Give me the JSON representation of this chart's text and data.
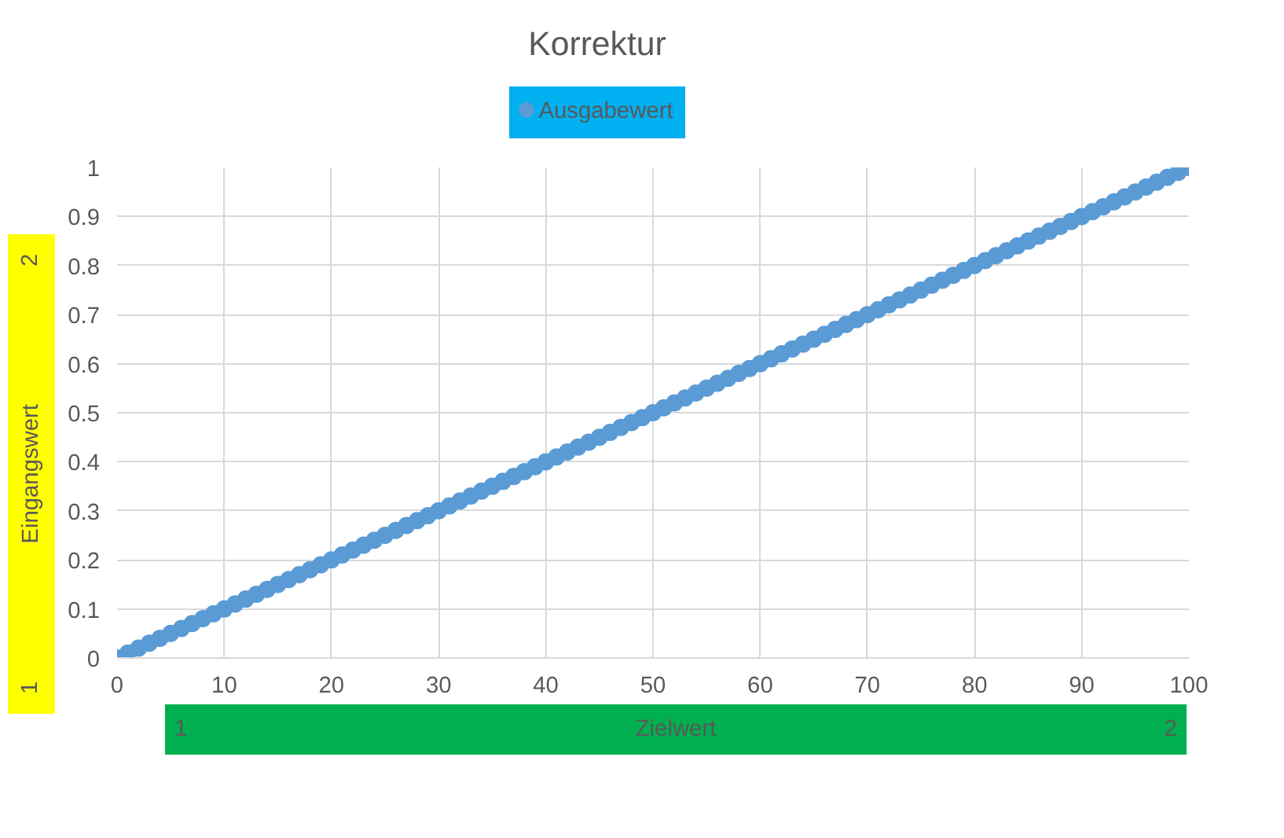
{
  "chart_data": {
    "type": "scatter",
    "title": "Korrektur",
    "xlabel": "Zielwert",
    "ylabel": "Eingangswert",
    "annotations": [
      "2",
      "1",
      "1",
      "2"
    ],
    "x": [
      0,
      1,
      2,
      3,
      4,
      5,
      6,
      7,
      8,
      9,
      10,
      11,
      12,
      13,
      14,
      15,
      16,
      17,
      18,
      19,
      20,
      21,
      22,
      23,
      24,
      25,
      26,
      27,
      28,
      29,
      30,
      31,
      32,
      33,
      34,
      35,
      36,
      37,
      38,
      39,
      40,
      41,
      42,
      43,
      44,
      45,
      46,
      47,
      48,
      49,
      50,
      51,
      52,
      53,
      54,
      55,
      56,
      57,
      58,
      59,
      60,
      61,
      62,
      63,
      64,
      65,
      66,
      67,
      68,
      69,
      70,
      71,
      72,
      73,
      74,
      75,
      76,
      77,
      78,
      79,
      80,
      81,
      82,
      83,
      84,
      85,
      86,
      87,
      88,
      89,
      90,
      91,
      92,
      93,
      94,
      95,
      96,
      97,
      98,
      99,
      100
    ],
    "series": [
      {
        "name": "Ausgabewert",
        "color": "#5b9bd5",
        "values": [
          0,
          0.01,
          0.02,
          0.03,
          0.04,
          0.05,
          0.06,
          0.07,
          0.08,
          0.09,
          0.1,
          0.11,
          0.12,
          0.13,
          0.14,
          0.15,
          0.16,
          0.17,
          0.18,
          0.19,
          0.2,
          0.21,
          0.22,
          0.23,
          0.24,
          0.25,
          0.26,
          0.27,
          0.28,
          0.29,
          0.3,
          0.31,
          0.32,
          0.33,
          0.34,
          0.35,
          0.36,
          0.37,
          0.38,
          0.39,
          0.4,
          0.41,
          0.42,
          0.43,
          0.44,
          0.45,
          0.46,
          0.47,
          0.48,
          0.49,
          0.5,
          0.51,
          0.52,
          0.53,
          0.54,
          0.55,
          0.56,
          0.57,
          0.58,
          0.59,
          0.6,
          0.61,
          0.62,
          0.63,
          0.64,
          0.65,
          0.66,
          0.67,
          0.68,
          0.69,
          0.7,
          0.71,
          0.72,
          0.73,
          0.74,
          0.75,
          0.76,
          0.77,
          0.78,
          0.79,
          0.8,
          0.81,
          0.82,
          0.83,
          0.84,
          0.85,
          0.86,
          0.87,
          0.88,
          0.89,
          0.9,
          0.91,
          0.92,
          0.93,
          0.94,
          0.95,
          0.96,
          0.97,
          0.98,
          0.99,
          1
        ]
      }
    ],
    "xlim": [
      0,
      100
    ],
    "xticks": [
      0,
      10,
      20,
      30,
      40,
      50,
      60,
      70,
      80,
      90,
      100
    ],
    "ylim": [
      0,
      1
    ],
    "yticks": [
      0,
      0.1,
      0.2,
      0.3,
      0.4,
      0.5,
      0.6,
      0.7,
      0.8,
      0.9,
      1
    ],
    "grid": true,
    "legend": "top",
    "marker": "circle"
  }
}
